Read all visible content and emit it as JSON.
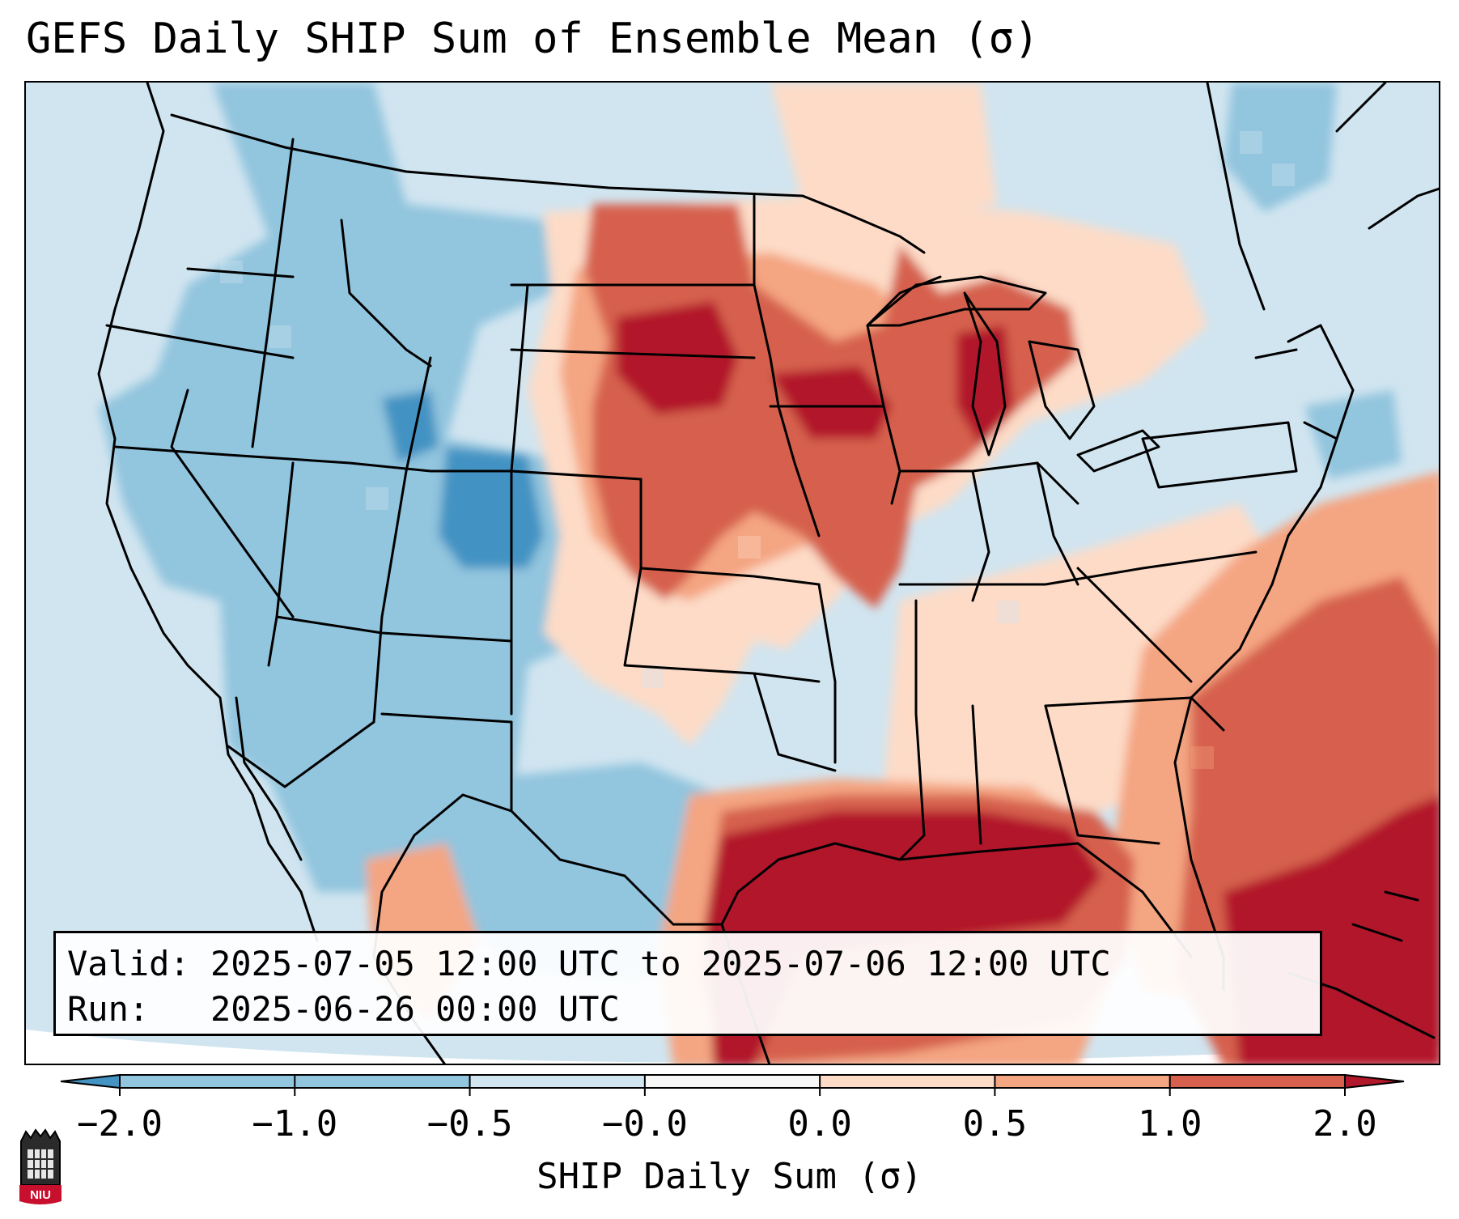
{
  "title": "GEFS Daily SHIP Sum of Ensemble Mean (σ)",
  "info": {
    "valid_label": "Valid:",
    "valid_value": "2025-07-05 12:00 UTC to 2025-07-06 12:00 UTC",
    "run_label": "Run:",
    "run_value": "2025-06-26 00:00 UTC"
  },
  "colorbar": {
    "label": "SHIP Daily Sum (σ)",
    "ticks": [
      "−2.0",
      "−1.0",
      "−0.5",
      "−0.0",
      "0.0",
      "0.5",
      "1.0",
      "2.0"
    ],
    "colors": [
      "#4393c3",
      "#92c5de",
      "#d1e5f0",
      "#f7f7f7",
      "#fddbc7",
      "#f4a582",
      "#d6604d",
      "#b2182b"
    ],
    "extend": "both"
  },
  "logo": {
    "text": "NIU"
  },
  "colors": {
    "blue_strong": "#4393c3",
    "blue_mid": "#92c5de",
    "blue_light": "#d1e5f0",
    "neutral": "#f7f7f7",
    "red_light": "#fddbc7",
    "red_mid": "#f4a582",
    "red_strong": "#d6604d",
    "red_dark": "#b2182b"
  }
}
